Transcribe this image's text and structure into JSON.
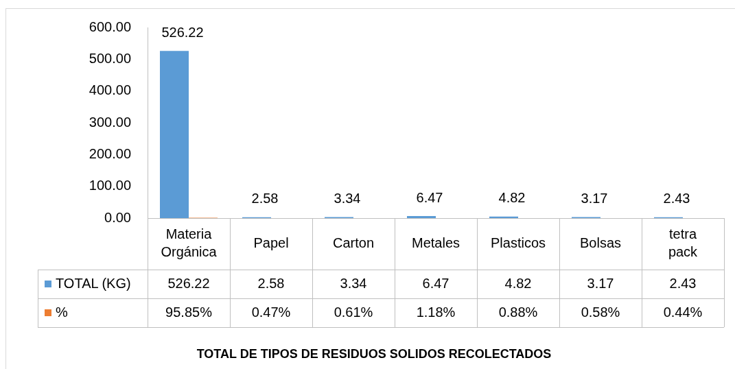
{
  "chart_data": {
    "type": "bar",
    "title": "TOTAL DE TIPOS DE RESIDUOS SOLIDOS RECOLECTADOS",
    "categories": [
      "Materia Orgánica",
      "Papel",
      "Carton",
      "Metales",
      "Plasticos",
      "Bolsas",
      "tetra pack"
    ],
    "series": [
      {
        "name": "TOTAL (KG)",
        "color": "#5b9bd5",
        "values": [
          526.22,
          2.58,
          3.34,
          6.47,
          4.82,
          3.17,
          2.43
        ],
        "value_labels": [
          "526.22",
          "2.58",
          "3.34",
          "6.47",
          "4.82",
          "3.17",
          "2.43"
        ]
      },
      {
        "name": "%",
        "color": "#ed7d31",
        "values": [
          0.9585,
          0.0047,
          0.0061,
          0.0118,
          0.0088,
          0.0058,
          0.0044
        ],
        "value_labels": [
          "95.85%",
          "0.47%",
          "0.61%",
          "1.18%",
          "0.88%",
          "0.58%",
          "0.44%"
        ]
      }
    ],
    "ylim": [
      0,
      600
    ],
    "yticks": [
      {
        "value": 0,
        "label": "0.00"
      },
      {
        "value": 100,
        "label": "100.00"
      },
      {
        "value": 200,
        "label": "200.00"
      },
      {
        "value": 300,
        "label": "300.00"
      },
      {
        "value": 400,
        "label": "400.00"
      },
      {
        "value": 500,
        "label": "500.00"
      },
      {
        "value": 600,
        "label": "600.00"
      }
    ],
    "grid": false,
    "legend": "bottom"
  }
}
